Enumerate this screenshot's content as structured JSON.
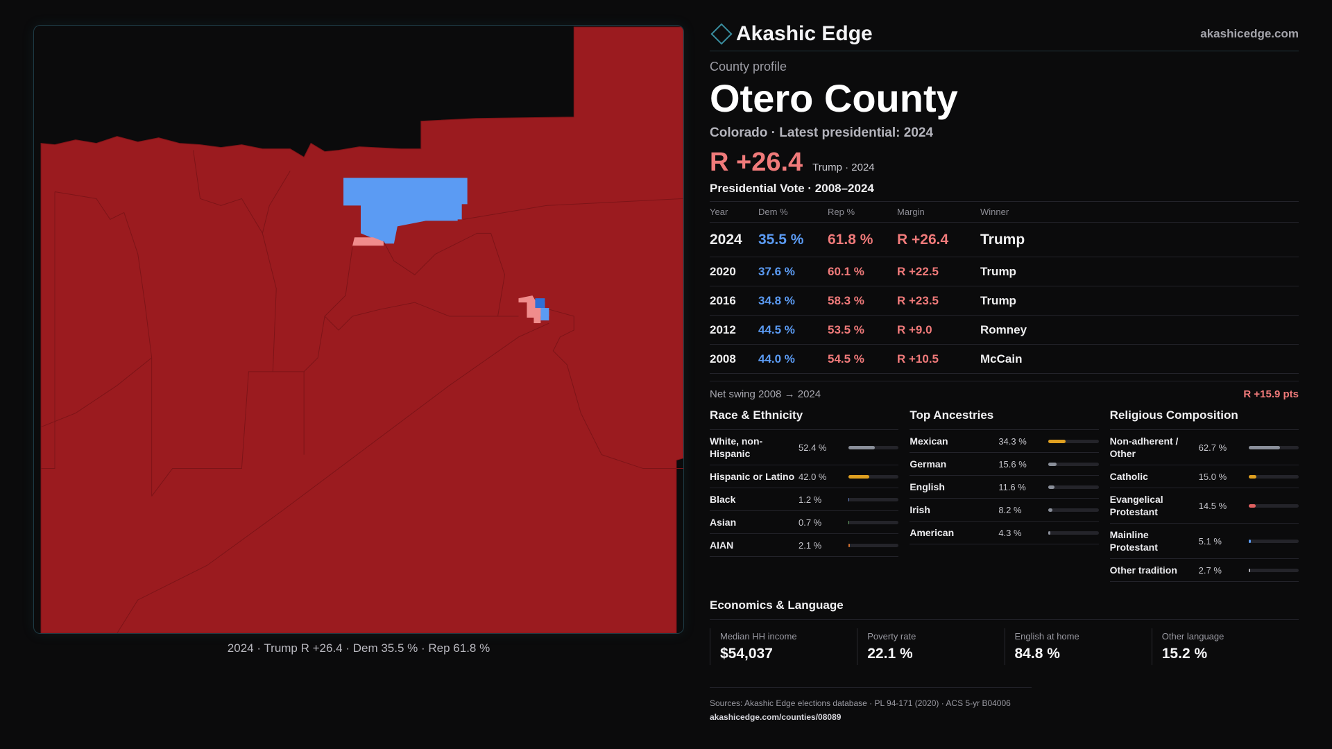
{
  "brand": {
    "name": "Akashic Edge",
    "url": "akashicedge.com"
  },
  "profile": {
    "kicker": "County profile",
    "title": "Otero County",
    "subtitle": "Colorado · Latest presidential: 2024",
    "margin": "R +26.4",
    "margin_note": "Trump · 2024"
  },
  "votes": {
    "title": "Presidential Vote · 2008–2024",
    "headers": [
      "Year",
      "Dem %",
      "Rep %",
      "Margin",
      "Winner"
    ],
    "rows": [
      {
        "year": "2024",
        "dem": "35.5 %",
        "rep": "61.8 %",
        "margin": "R +26.4",
        "winner": "Trump"
      },
      {
        "year": "2020",
        "dem": "37.6 %",
        "rep": "60.1 %",
        "margin": "R +22.5",
        "winner": "Trump"
      },
      {
        "year": "2016",
        "dem": "34.8 %",
        "rep": "58.3 %",
        "margin": "R +23.5",
        "winner": "Trump"
      },
      {
        "year": "2012",
        "dem": "44.5 %",
        "rep": "53.5 %",
        "margin": "R +9.0",
        "winner": "Romney"
      },
      {
        "year": "2008",
        "dem": "44.0 %",
        "rep": "54.5 %",
        "margin": "R +10.5",
        "winner": "McCain"
      }
    ],
    "swing_label": "Net swing 2008 → 2024",
    "swing_value": "R +15.9 pts"
  },
  "race": {
    "title": "Race & Ethnicity",
    "items": [
      {
        "label": "White, non-Hispanic",
        "value": "52.4 %",
        "pct": 52.4,
        "color": "#8a8f9a"
      },
      {
        "label": "Hispanic or Latino",
        "value": "42.0 %",
        "pct": 42.0,
        "color": "#e0a020"
      },
      {
        "label": "Black",
        "value": "1.2 %",
        "pct": 1.2,
        "color": "#6a86c8"
      },
      {
        "label": "Asian",
        "value": "0.7 %",
        "pct": 0.7,
        "color": "#6aa86a"
      },
      {
        "label": "AIAN",
        "value": "2.1 %",
        "pct": 2.1,
        "color": "#d07030"
      }
    ]
  },
  "ancestry": {
    "title": "Top Ancestries",
    "items": [
      {
        "label": "Mexican",
        "value": "34.3 %",
        "pct": 34.3,
        "color": "#e0a020"
      },
      {
        "label": "German",
        "value": "15.6 %",
        "pct": 15.6,
        "color": "#8a8f9a"
      },
      {
        "label": "English",
        "value": "11.6 %",
        "pct": 11.6,
        "color": "#8a8f9a"
      },
      {
        "label": "Irish",
        "value": "8.2 %",
        "pct": 8.2,
        "color": "#8a8f9a"
      },
      {
        "label": "American",
        "value": "4.3 %",
        "pct": 4.3,
        "color": "#8a8f9a"
      }
    ]
  },
  "religion": {
    "title": "Religious Composition",
    "items": [
      {
        "label": "Non-adherent / Other",
        "value": "62.7 %",
        "pct": 62.7,
        "color": "#8a8f9a"
      },
      {
        "label": "Catholic",
        "value": "15.0 %",
        "pct": 15.0,
        "color": "#e0a020"
      },
      {
        "label": "Evangelical Protestant",
        "value": "14.5 %",
        "pct": 14.5,
        "color": "#e06060"
      },
      {
        "label": "Mainline Protestant",
        "value": "5.1 %",
        "pct": 5.1,
        "color": "#5b9bf3"
      },
      {
        "label": "Other tradition",
        "value": "2.7 %",
        "pct": 2.7,
        "color": "#b0b0b8"
      }
    ]
  },
  "economics": {
    "title": "Economics & Language",
    "cards": [
      {
        "label": "Median HH income",
        "value": "$54,037"
      },
      {
        "label": "Poverty rate",
        "value": "22.1 %"
      },
      {
        "label": "English at home",
        "value": "84.8 %"
      },
      {
        "label": "Other language",
        "value": "15.2 %"
      }
    ]
  },
  "sources": {
    "text": "Sources: Akashic Edge elections database · PL 94-171 (2020) · ACS 5-yr B04006",
    "url": "akashicedge.com/counties/08089"
  },
  "map": {
    "caption": "2024 · Trump R +26.4 · Dem 35.5 % · Rep 61.8 %",
    "colors": {
      "rep": "#9b1b1f",
      "dem": "#5b9bf3",
      "dem_strong": "#2f6fd6",
      "rep_light": "#f08c8c",
      "background": "#0b0b0c"
    }
  }
}
